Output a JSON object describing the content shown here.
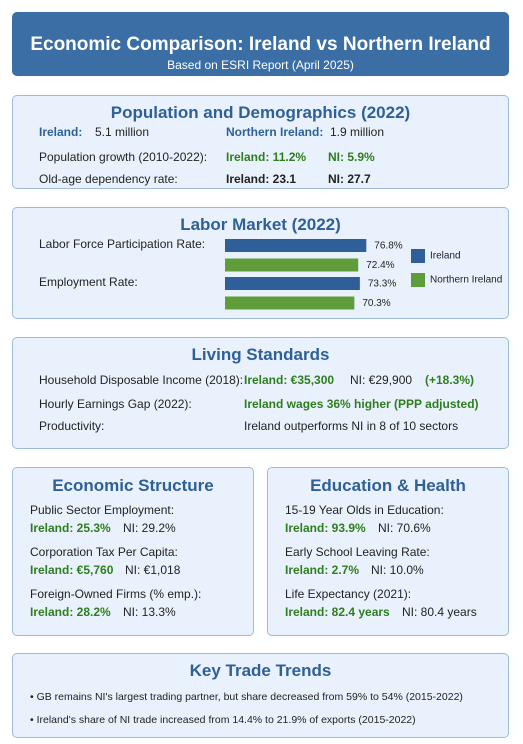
{
  "header": {
    "title": "Economic Comparison: Ireland vs Northern Ireland",
    "subtitle": "Based on ESRI Report (April 2025)"
  },
  "population": {
    "title": "Population and Demographics (2022)",
    "ireland_label": "Ireland:",
    "ireland_value": "5.1 million",
    "ni_label": "Northern Ireland:",
    "ni_value": "1.9 million",
    "growth_label": "Population growth (2010-2022):",
    "growth_ireland": "Ireland: 11.2%",
    "growth_ni": "NI: 5.9%",
    "dependency_label": "Old-age dependency rate:",
    "dependency_ireland": "Ireland: 23.1",
    "dependency_ni": "NI: 27.7"
  },
  "chart_data": {
    "type": "bar",
    "title": "Labor Market (2022)",
    "orientation": "horizontal",
    "categories": [
      "Labor Force Participation Rate:",
      "Employment Rate:"
    ],
    "xlim": [
      0,
      100
    ],
    "series": [
      {
        "name": "Ireland",
        "color": "#2f5f98",
        "values": [
          76.8,
          73.3
        ],
        "value_labels": [
          "76.8%",
          "73.3%"
        ]
      },
      {
        "name": "Northern Ireland",
        "color": "#5f9c3a",
        "values": [
          72.4,
          70.3
        ],
        "value_labels": [
          "72.4%",
          "70.3%"
        ]
      }
    ]
  },
  "living": {
    "title": "Living Standards",
    "rows": [
      {
        "label": "Household Disposable Income (2018):",
        "ireland": "Ireland: €35,300",
        "ni": "NI: €29,900",
        "diff": "(+18.3%)"
      },
      {
        "label": "Hourly Earnings Gap (2022):",
        "ireland": "Ireland wages 36% higher (PPP adjusted)"
      },
      {
        "label": "Productivity:",
        "text": "Ireland outperforms NI in 8 of 10 sectors"
      }
    ]
  },
  "structure": {
    "title": "Economic Structure",
    "items": [
      {
        "label": "Public Sector Employment:",
        "ireland": "Ireland: 25.3%",
        "ni": "NI: 29.2%"
      },
      {
        "label": "Corporation Tax Per Capita:",
        "ireland": "Ireland: €5,760",
        "ni": "NI: €1,018"
      },
      {
        "label": "Foreign-Owned Firms (% emp.):",
        "ireland": "Ireland: 28.2%",
        "ni": "NI: 13.3%"
      }
    ]
  },
  "education": {
    "title": "Education & Health",
    "items": [
      {
        "label": "15-19 Year Olds in Education:",
        "ireland": "Ireland: 93.9%",
        "ni": "NI: 70.6%"
      },
      {
        "label": "Early School Leaving Rate:",
        "ireland": "Ireland: 2.7%",
        "ni": "NI: 10.0%"
      },
      {
        "label": "Life Expectancy (2021):",
        "ireland": "Ireland: 82.4 years",
        "ni": "NI: 80.4 years"
      }
    ]
  },
  "trade": {
    "title": "Key Trade Trends",
    "bullets": [
      "GB remains NI's largest trading partner, but share decreased from 59% to 54% (2015-2022)",
      "Ireland's share of NI trade increased from 14.4% to 21.9% of exports (2015-2022)"
    ]
  }
}
